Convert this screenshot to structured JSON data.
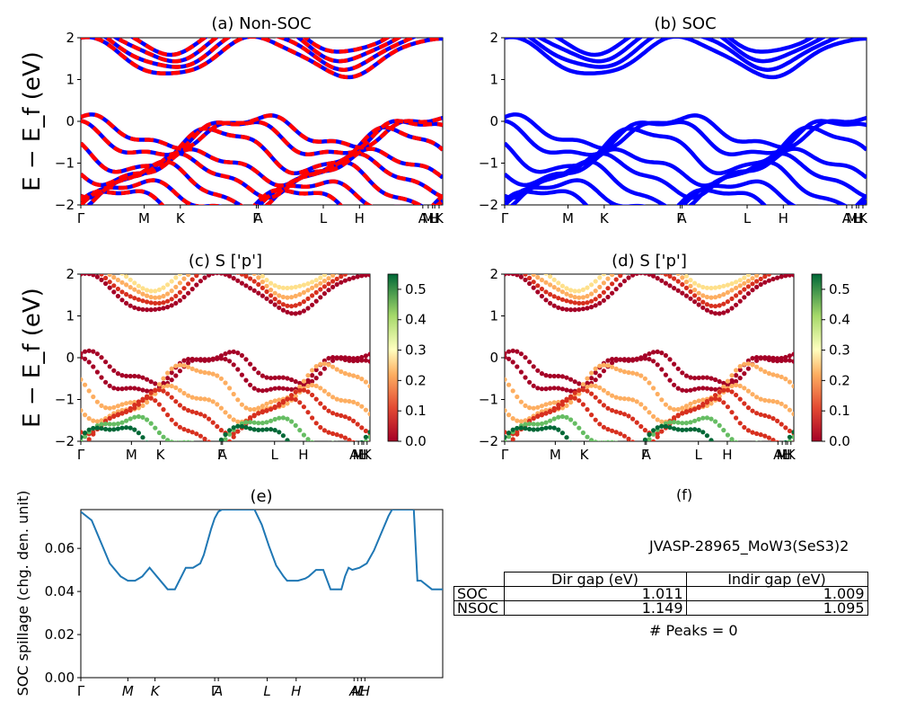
{
  "figure": {
    "ylabel": "E − E_f (eV)",
    "ylim": [
      -2,
      2
    ],
    "yticks": [
      "−2",
      "−1",
      "0",
      "1",
      "2"
    ],
    "kpath_labels": [
      "Γ",
      "M",
      "K",
      "Γ",
      "A",
      "L",
      "H",
      "A",
      "M",
      "L",
      "H",
      "K"
    ],
    "kpath_labels_short": [
      "Γ",
      "M",
      "K",
      "Γ",
      "A",
      "L",
      "H",
      "A",
      "M",
      "L",
      "H"
    ],
    "colors": {
      "nonsoc_a": "#ff0000",
      "nonsoc_b": "#0000ff",
      "soc": "#0000ff",
      "line": "#1f77b4"
    }
  },
  "chart_data": [
    {
      "type": "line",
      "title": "(a) Non-SOC",
      "ylabel": "E − E_f (eV)",
      "ylim": [
        -2,
        2
      ],
      "x_ticks": [
        "Γ",
        "M",
        "K",
        "Γ",
        "A",
        "L",
        "H",
        "A",
        "M",
        "L",
        "H",
        "K"
      ],
      "series": [
        {
          "values": [
            -0.05,
            -0.35,
            -0.45,
            -0.35,
            -0.05,
            0.0,
            -0.15,
            -0.45,
            -0.15,
            -0.05
          ]
        },
        {
          "values": [
            1.9,
            1.5,
            1.15,
            1.5,
            1.9,
            1.9,
            1.5,
            1.15,
            1.5,
            1.9
          ]
        }
      ]
    },
    {
      "type": "line",
      "title": "(b) SOC",
      "ylabel": "",
      "ylim": [
        -2,
        2
      ],
      "x_ticks": [
        "Γ",
        "M",
        "K",
        "Γ",
        "A",
        "L",
        "H",
        "A",
        "M",
        "L",
        "H",
        "K"
      ],
      "series": [
        {
          "values": [
            -0.05,
            -0.35,
            -0.45,
            -0.35,
            -0.05,
            0.0,
            -0.15,
            -0.45,
            -0.15,
            -0.05
          ]
        },
        {
          "values": [
            1.9,
            1.5,
            1.05,
            1.5,
            1.9,
            1.9,
            1.5,
            1.05,
            1.5,
            1.9
          ]
        }
      ]
    },
    {
      "type": "scatter",
      "title": "(c)  S ['p']",
      "ylabel": "E − E_f (eV)",
      "ylim": [
        -2,
        2
      ],
      "colorbar": {
        "min": 0.0,
        "max": 0.55,
        "ticks": [
          "0.0",
          "0.1",
          "0.2",
          "0.3",
          "0.4",
          "0.5"
        ]
      }
    },
    {
      "type": "scatter",
      "title": "(d) S ['p']",
      "ylabel": "",
      "ylim": [
        -2,
        2
      ],
      "colorbar": {
        "min": 0.0,
        "max": 0.55,
        "ticks": [
          "0.0",
          "0.1",
          "0.2",
          "0.3",
          "0.4",
          "0.5"
        ]
      }
    },
    {
      "type": "line",
      "title": "(e)",
      "ylabel": "SOC spillage (chg. den. unit)",
      "ylim": [
        0.0,
        0.078
      ],
      "yticks": [
        "0.00",
        "0.02",
        "0.04",
        "0.06"
      ],
      "x_ticks": [
        "Γ",
        "M",
        "K",
        "Γ",
        "A",
        "L",
        "H",
        "A",
        "M",
        "L",
        "H"
      ],
      "x": [
        0,
        3,
        6,
        8,
        11,
        13,
        15,
        16,
        17,
        18,
        19,
        21,
        24,
        26,
        29,
        31,
        33,
        34,
        35,
        36,
        37,
        38,
        39,
        40,
        42,
        45,
        48,
        50,
        52,
        54,
        56,
        57,
        59,
        60,
        62,
        63,
        65,
        67,
        69,
        71,
        72,
        73,
        74,
        75,
        77,
        79,
        81,
        83,
        85,
        86,
        88,
        92,
        93,
        94,
        97,
        100
      ],
      "values": [
        0.077,
        0.073,
        0.061,
        0.053,
        0.047,
        0.045,
        0.045,
        0.046,
        0.047,
        0.049,
        0.051,
        0.047,
        0.041,
        0.041,
        0.051,
        0.051,
        0.053,
        0.057,
        0.063,
        0.069,
        0.074,
        0.077,
        0.078,
        0.078,
        0.078,
        0.078,
        0.078,
        0.071,
        0.061,
        0.052,
        0.047,
        0.045,
        0.045,
        0.045,
        0.046,
        0.047,
        0.05,
        0.05,
        0.041,
        0.041,
        0.041,
        0.047,
        0.051,
        0.05,
        0.051,
        0.053,
        0.059,
        0.067,
        0.075,
        0.078,
        0.078,
        0.078,
        0.045,
        0.045,
        0.041,
        0.041
      ]
    }
  ],
  "panel_f": {
    "title": "(f)",
    "jid": "JVASP-28965_MoW3(SeS3)2",
    "headers": [
      "Dir gap (eV)",
      "Indir gap (eV)"
    ],
    "rows": [
      {
        "label": "SOC",
        "dir": "1.011",
        "indir": "1.009"
      },
      {
        "label": "NSOC",
        "dir": "1.149",
        "indir": "1.095"
      }
    ],
    "peaks": "# Peaks = 0"
  }
}
